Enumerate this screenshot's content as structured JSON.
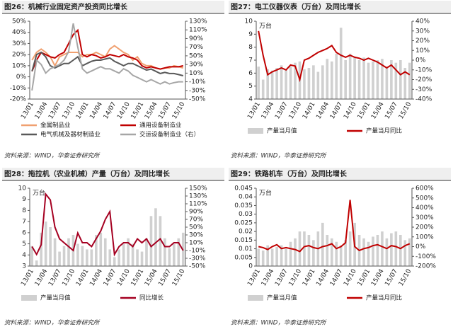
{
  "chart_data": [
    {
      "type": "line",
      "title": "图26：机械行业固定资产投资同比增长",
      "categories": [
        "13/01",
        null,
        null,
        "13/04",
        null,
        null,
        "13/07",
        null,
        null,
        "13/10",
        null,
        null,
        "14/01",
        null,
        null,
        "14/04",
        null,
        null,
        "14/07",
        null,
        null,
        "14/10",
        null,
        null,
        "15/01",
        null,
        null,
        "15/04",
        null,
        null,
        "15/07",
        null,
        null,
        "15/10"
      ],
      "series": [
        {
          "name": "金属制品业",
          "color": "#f0a070",
          "type": "line",
          "values": [
            15,
            22,
            25,
            22,
            18,
            10,
            18,
            20,
            22,
            22,
            22,
            18,
            20,
            20,
            22,
            20,
            18,
            25,
            28,
            25,
            22,
            20,
            15,
            18,
            12,
            10,
            10,
            8,
            7,
            8,
            8,
            10,
            9,
            8
          ]
        },
        {
          "name": "通用设备制造业",
          "color": "#c00000",
          "type": "line",
          "values": [
            5,
            15,
            22,
            20,
            18,
            17,
            20,
            22,
            30,
            38,
            42,
            20,
            18,
            20,
            19,
            17,
            18,
            20,
            19,
            18,
            20,
            18,
            17,
            15,
            10,
            8,
            9,
            8,
            7,
            8,
            9,
            9,
            9,
            10
          ]
        },
        {
          "name": "电气机械及器材制造业",
          "color": "#595959",
          "type": "line",
          "values": [
            5,
            20,
            22,
            18,
            10,
            8,
            10,
            12,
            12,
            15,
            18,
            10,
            12,
            14,
            15,
            15,
            16,
            17,
            14,
            12,
            10,
            12,
            12,
            10,
            8,
            6,
            7,
            5,
            3,
            4,
            3,
            3,
            2,
            1
          ]
        },
        {
          "name": "交运设备制造业（右）",
          "color": "#a6a6a6",
          "type": "line",
          "axis": "y2",
          "values": [
            -30,
            40,
            30,
            10,
            20,
            25,
            30,
            40,
            60,
            125,
            70,
            20,
            10,
            15,
            20,
            25,
            20,
            20,
            15,
            10,
            20,
            15,
            5,
            0,
            -5,
            -10,
            -5,
            -10,
            -15,
            -10,
            -15,
            -12,
            -10,
            -10
          ]
        }
      ],
      "ylim": [
        -20,
        50
      ],
      "yticks": [
        {
          "value": -20,
          "label": "-20%"
        },
        {
          "value": -10,
          "label": "-10%"
        },
        {
          "value": 0,
          "label": "0%"
        },
        {
          "value": 10,
          "label": "10%"
        },
        {
          "value": 20,
          "label": "20%"
        },
        {
          "value": 30,
          "label": "30%"
        },
        {
          "value": 40,
          "label": "40%"
        },
        {
          "value": 50,
          "label": "50%"
        }
      ],
      "y2lim": [
        -50,
        130
      ],
      "y2ticks": [
        {
          "value": -50,
          "label": "-50%"
        },
        {
          "value": -30,
          "label": "-30%"
        },
        {
          "value": -10,
          "label": "-10%"
        },
        {
          "value": 10,
          "label": "10%"
        },
        {
          "value": 30,
          "label": "30%"
        },
        {
          "value": 50,
          "label": "50%"
        },
        {
          "value": 70,
          "label": "70%"
        },
        {
          "value": 90,
          "label": "90%"
        },
        {
          "value": 110,
          "label": "110%"
        },
        {
          "value": 130,
          "label": "130%"
        }
      ],
      "legend_columns": 2,
      "source": "资料来源：WIND，华泰证券研究所"
    },
    {
      "type": "combo",
      "title": "图27：电工仪器仪表（万台）及同比增长",
      "unit_label": "万台",
      "categories": [
        "13/01",
        null,
        null,
        "13/04",
        null,
        null,
        "13/07",
        null,
        null,
        "13/10",
        null,
        null,
        "14/01",
        null,
        null,
        "14/04",
        null,
        null,
        "14/07",
        null,
        null,
        "14/10",
        null,
        null,
        "15/01",
        null,
        null,
        "15/04",
        null,
        null,
        "15/07",
        null,
        null,
        "15/10"
      ],
      "series": [
        {
          "name": "产量当月值",
          "color": "#d0d0d0",
          "type": "bar",
          "values": [
            6.5,
            5.5,
            6.3,
            6.2,
            6.4,
            6.6,
            6.3,
            6.5,
            6.8,
            6.9,
            6.3,
            6.4,
            6.6,
            6.1,
            6.6,
            7.1,
            6.9,
            7.5,
            9.5,
            7.0,
            7.5,
            7.2,
            7.0,
            7.2,
            6.8,
            6.9,
            7.0,
            7.1,
            6.5,
            7.0,
            6.8,
            7.0,
            6.4,
            6.8
          ]
        },
        {
          "name": "产量当月同比",
          "color": "#c00000",
          "type": "line",
          "axis": "y2",
          "values": [
            30,
            5,
            -15,
            -12,
            -10,
            -8,
            -10,
            -5,
            -6,
            -20,
            0,
            2,
            5,
            8,
            10,
            12,
            15,
            8,
            5,
            3,
            5,
            3,
            2,
            0,
            2,
            0,
            -2,
            -5,
            -8,
            -5,
            -10,
            -15,
            -12,
            -15
          ]
        }
      ],
      "ylim": [
        4,
        10
      ],
      "yticks": [
        4,
        5,
        6,
        7,
        8,
        9,
        10
      ],
      "y2lim": [
        -40,
        40
      ],
      "y2ticks": [
        {
          "value": -40,
          "label": "-40%"
        },
        {
          "value": -30,
          "label": "-30%"
        },
        {
          "value": -20,
          "label": "-20%"
        },
        {
          "value": -10,
          "label": "-10%"
        },
        {
          "value": 0,
          "label": "0%"
        },
        {
          "value": 10,
          "label": "10%"
        },
        {
          "value": 20,
          "label": "20%"
        },
        {
          "value": 30,
          "label": "30%"
        },
        {
          "value": 40,
          "label": "40%"
        }
      ],
      "legend_columns": 2,
      "source": "资料来源：WIND，华泰证券研究所"
    },
    {
      "type": "combo",
      "title": "图28：拖拉机（农业机械）产量（万台）及同比增长",
      "unit_label": "万台",
      "categories": [
        "13/01",
        null,
        null,
        "13/04",
        null,
        null,
        "13/07",
        null,
        null,
        "13/10",
        null,
        null,
        "14/01",
        null,
        null,
        "14/04",
        null,
        null,
        "14/07",
        null,
        null,
        "14/10",
        null,
        null,
        "15/01",
        null,
        null,
        "15/04",
        null,
        null,
        "15/07",
        null,
        null,
        "15/10"
      ],
      "series": [
        {
          "name": "产量当月值",
          "color": "#d0d0d0",
          "type": "bar",
          "values": [
            4.8,
            3.5,
            6.0,
            7.0,
            6.5,
            5.5,
            4.3,
            4.8,
            5.5,
            5.8,
            5.0,
            4.8,
            4.5,
            4.5,
            5.8,
            6.0,
            5.5,
            4.5,
            3.8,
            4.5,
            5.0,
            5.5,
            5.0,
            4.5,
            4.3,
            5.5,
            7.5,
            8.2,
            7.5,
            5.5,
            4.6,
            5.0,
            5.5,
            6.0
          ]
        },
        {
          "name": "同比增长",
          "color": "#a50021",
          "type": "line",
          "axis": "y2",
          "values": [
            0,
            -20,
            5,
            135,
            120,
            50,
            20,
            10,
            0,
            -10,
            35,
            10,
            10,
            0,
            20,
            40,
            70,
            90,
            -20,
            0,
            10,
            10,
            0,
            20,
            10,
            20,
            0,
            10,
            20,
            0,
            0,
            10,
            10,
            -10
          ]
        }
      ],
      "ylim": [
        3,
        10
      ],
      "yticks": [
        3,
        4,
        5,
        6,
        7,
        8,
        9,
        10
      ],
      "y2lim": [
        -50,
        150
      ],
      "y2ticks": [
        {
          "value": -50,
          "label": "-50%"
        },
        {
          "value": -30,
          "label": "-30%"
        },
        {
          "value": -10,
          "label": "-10%"
        },
        {
          "value": 10,
          "label": "10%"
        },
        {
          "value": 30,
          "label": "30%"
        },
        {
          "value": 50,
          "label": "50%"
        },
        {
          "value": 70,
          "label": "70%"
        },
        {
          "value": 90,
          "label": "90%"
        },
        {
          "value": 110,
          "label": "110%"
        },
        {
          "value": 130,
          "label": "130%"
        },
        {
          "value": 150,
          "label": "150%"
        }
      ],
      "legend_columns": 2,
      "source": "资料来源：WIND，华泰证券研究所"
    },
    {
      "type": "combo",
      "title": "图29：铁路机车（万台）及同比增长",
      "unit_label": "万台",
      "categories": [
        "13/01",
        null,
        null,
        "13/04",
        null,
        null,
        "13/07",
        null,
        null,
        "13/10",
        null,
        null,
        "14/01",
        null,
        null,
        "14/04",
        null,
        null,
        "14/07",
        null,
        null,
        "14/10",
        null,
        null,
        "15/01",
        null,
        null,
        "15/04",
        null,
        null,
        "15/07",
        null,
        null,
        "15/10"
      ],
      "series": [
        {
          "name": "产量当月值",
          "color": "#d0d0d0",
          "type": "bar",
          "values": [
            0.01,
            0.009,
            0.012,
            0.01,
            0.011,
            0.012,
            0.01,
            0.014,
            0.016,
            0.02,
            0.02,
            0.018,
            0.015,
            0.02,
            0.025,
            0.018,
            0.016,
            0.014,
            0.012,
            0.015,
            0.02,
            0.025,
            0.018,
            0.016,
            0.014,
            0.017,
            0.018,
            0.02,
            0.016,
            0.019,
            0.02,
            0.018,
            0.015,
            0.016
          ]
        },
        {
          "name": "产量当月同比",
          "color": "#c00000",
          "type": "line",
          "axis": "y2",
          "values": [
            0,
            -10,
            -30,
            0,
            20,
            -20,
            -10,
            -20,
            -30,
            -50,
            0,
            10,
            -10,
            -20,
            0,
            10,
            30,
            -20,
            0,
            40,
            480,
            0,
            -40,
            -20,
            -10,
            10,
            20,
            0,
            -20,
            10,
            0,
            -20,
            10,
            30
          ]
        }
      ],
      "ylim": [
        0,
        0.045
      ],
      "yticks": [
        0,
        0.005,
        0.01,
        0.015,
        0.02,
        0.025,
        0.03,
        0.035,
        0.04,
        0.045
      ],
      "y2lim": [
        -200,
        600
      ],
      "y2ticks": [
        {
          "value": -200,
          "label": "-200%"
        },
        {
          "value": -100,
          "label": "-100%"
        },
        {
          "value": 0,
          "label": "0%"
        },
        {
          "value": 100,
          "label": "100%"
        },
        {
          "value": 200,
          "label": "200%"
        },
        {
          "value": 300,
          "label": "300%"
        },
        {
          "value": 400,
          "label": "400%"
        },
        {
          "value": 500,
          "label": "500%"
        },
        {
          "value": 600,
          "label": "600%"
        }
      ],
      "legend_columns": 2,
      "source": "资料来源：WIND，华泰证券研究所"
    }
  ]
}
